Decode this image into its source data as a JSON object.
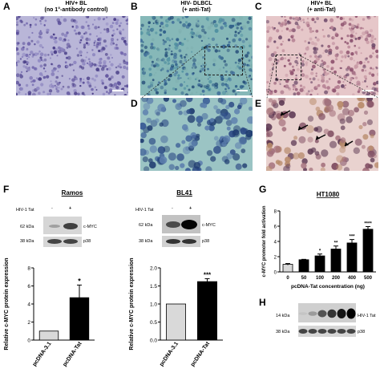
{
  "panels": {
    "A": {
      "label": "A",
      "title_line1": "HIV+ BL",
      "title_line2": "(no 1°-antibody control)"
    },
    "B": {
      "label": "B",
      "title_line1": "HIV- DLBCL",
      "title_line2": "(+ anti-Tat)"
    },
    "C": {
      "label": "C",
      "title_line1": "HIV+ BL",
      "title_line2": "(+ anti-Tat)"
    },
    "D": {
      "label": "D"
    },
    "E": {
      "label": "E"
    },
    "F": {
      "label": "F",
      "ramos": {
        "title": "Ramos",
        "tat_label": "HIV-1 Tat",
        "minus": "-",
        "plus": "+",
        "kda_top": "62 kDa",
        "kda_bottom": "38 kDa",
        "band_top": "c-MYC",
        "band_bottom": "p38"
      },
      "bl41": {
        "title": "BL41",
        "tat_label": "HIV-1 Tat",
        "minus": "-",
        "plus": "+",
        "kda_top": "62 kDa",
        "kda_bottom": "38 kDa",
        "band_top": "c-MYC",
        "band_bottom": "p38"
      }
    },
    "G": {
      "label": "G",
      "title": "HT1080"
    },
    "H": {
      "label": "H",
      "kda_top": "14 kDa",
      "kda_bottom": "38 kDa",
      "band_top": "HIV-1 Tat",
      "band_bottom": "p38"
    }
  },
  "chart_data": [
    {
      "id": "ramos-bar",
      "type": "bar",
      "categories": [
        "pcDNA-3.1",
        "pcDNA-Tat"
      ],
      "values": [
        1.0,
        4.7
      ],
      "errors": [
        0,
        1.4
      ],
      "significance": [
        "",
        "*"
      ],
      "colors": [
        "#d9d9d9",
        "#000000"
      ],
      "ylabel": "Relative c-MYC protein expression",
      "ylim": [
        0,
        8
      ],
      "yticks": [
        0,
        2,
        4,
        6,
        8
      ]
    },
    {
      "id": "bl41-bar",
      "type": "bar",
      "categories": [
        "pcDNA-3.1",
        "pcDNA-Tat"
      ],
      "values": [
        1.0,
        1.62
      ],
      "errors": [
        0,
        0.08
      ],
      "significance": [
        "",
        "***"
      ],
      "colors": [
        "#d9d9d9",
        "#000000"
      ],
      "ylabel": "Relative c-MYC protein expression",
      "ylim": [
        0,
        2.0
      ],
      "yticks": [
        0,
        0.5,
        1.0,
        1.5,
        2.0
      ],
      "ytick_labels": [
        "0.0",
        "0.5",
        "1.0",
        "1.5",
        "2.0"
      ]
    },
    {
      "id": "ht1080-bar",
      "type": "bar",
      "categories": [
        "0",
        "50",
        "100",
        "200",
        "400",
        "500"
      ],
      "values": [
        1.0,
        1.6,
        2.1,
        3.0,
        3.8,
        5.6
      ],
      "errors": [
        0.1,
        0.05,
        0.25,
        0.4,
        0.45,
        0.35
      ],
      "significance": [
        "",
        "",
        "*",
        "**",
        "***",
        "****"
      ],
      "colors": [
        "#d9d9d9",
        "#000000",
        "#000000",
        "#000000",
        "#000000",
        "#000000"
      ],
      "title": "HT1080",
      "xlabel": "pcDNA-Tat concentration (ng)",
      "ylabel": "c-MYC promoter fold activation",
      "ylim": [
        0,
        8
      ],
      "yticks": [
        0,
        2,
        4,
        6,
        8
      ]
    }
  ]
}
